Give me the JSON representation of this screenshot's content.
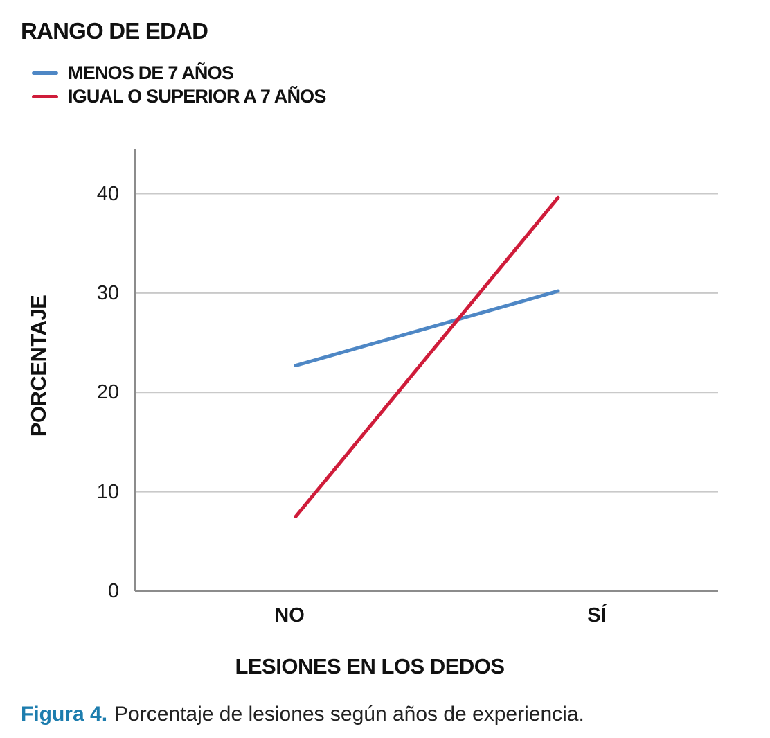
{
  "chart_data": {
    "type": "line",
    "title": "RANGO DE EDAD",
    "categories": [
      "NO",
      "SÍ"
    ],
    "series": [
      {
        "name": "MENOS DE 7 AÑOS",
        "color": "#4e87c5",
        "values": [
          22.7,
          30.2
        ]
      },
      {
        "name": "IGUAL O SUPERIOR A 7 AÑOS",
        "color": "#cf1c3a",
        "values": [
          7.5,
          39.6
        ]
      }
    ],
    "xlabel": "LESIONES EN LOS DEDOS",
    "ylabel": "PORCENTAJE",
    "yticks": [
      0,
      10,
      20,
      30,
      40
    ],
    "ylim": [
      0,
      44.5
    ],
    "grid": "horizontal gridlines at each y tick, no vertical gridlines",
    "legend_position": "top-left",
    "axis_color": "#8c8c8c",
    "gridline_color": "#c9c9c9"
  },
  "caption": {
    "label": "Figura 4.",
    "label_color": "#1d7dae",
    "text": "Porcentaje de lesiones según años de experiencia."
  }
}
